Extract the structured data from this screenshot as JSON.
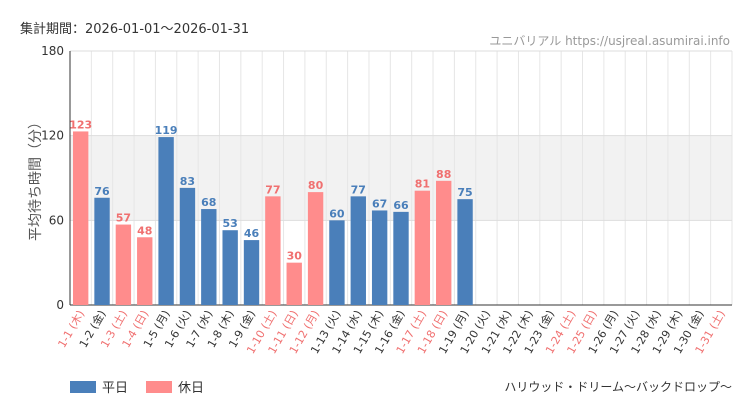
{
  "header": {
    "period_label": "集計期間：2026-01-01～2026-01-31",
    "site_name": "ユニバリアル",
    "site_url": "https://usjreal.asumirai.info"
  },
  "footer": {
    "attraction_name": "ハリウッド・ドリーム～バックドロップ～"
  },
  "colors": {
    "weekday": "#4a7fba",
    "holiday": "#ff8c8c",
    "holiday_label": "#f07070",
    "band": "#f2f2f2"
  },
  "chart_data": {
    "type": "bar",
    "ylabel": "平均待ち時間（分）",
    "ylim": [
      0,
      180
    ],
    "yticks": [
      0,
      60,
      120,
      180
    ],
    "highlight_band": [
      60,
      120
    ],
    "legend": [
      {
        "key": "weekday",
        "label": "平日"
      },
      {
        "key": "holiday",
        "label": "休日"
      }
    ],
    "categories": [
      {
        "label": "1-1 (木)",
        "value": 123,
        "holiday": true
      },
      {
        "label": "1-2 (金)",
        "value": 76,
        "holiday": false
      },
      {
        "label": "1-3 (土)",
        "value": 57,
        "holiday": true
      },
      {
        "label": "1-4 (日)",
        "value": 48,
        "holiday": true
      },
      {
        "label": "1-5 (月)",
        "value": 119,
        "holiday": false
      },
      {
        "label": "1-6 (火)",
        "value": 83,
        "holiday": false
      },
      {
        "label": "1-7 (水)",
        "value": 68,
        "holiday": false
      },
      {
        "label": "1-8 (木)",
        "value": 53,
        "holiday": false
      },
      {
        "label": "1-9 (金)",
        "value": 46,
        "holiday": false
      },
      {
        "label": "1-10 (土)",
        "value": 77,
        "holiday": true
      },
      {
        "label": "1-11 (日)",
        "value": 30,
        "holiday": true
      },
      {
        "label": "1-12 (月)",
        "value": 80,
        "holiday": true
      },
      {
        "label": "1-13 (火)",
        "value": 60,
        "holiday": false
      },
      {
        "label": "1-14 (水)",
        "value": 77,
        "holiday": false
      },
      {
        "label": "1-15 (木)",
        "value": 67,
        "holiday": false
      },
      {
        "label": "1-16 (金)",
        "value": 66,
        "holiday": false
      },
      {
        "label": "1-17 (土)",
        "value": 81,
        "holiday": true
      },
      {
        "label": "1-18 (日)",
        "value": 88,
        "holiday": true
      },
      {
        "label": "1-19 (月)",
        "value": 75,
        "holiday": false
      },
      {
        "label": "1-20 (火)",
        "value": null,
        "holiday": false
      },
      {
        "label": "1-21 (水)",
        "value": null,
        "holiday": false
      },
      {
        "label": "1-22 (木)",
        "value": null,
        "holiday": false
      },
      {
        "label": "1-23 (金)",
        "value": null,
        "holiday": false
      },
      {
        "label": "1-24 (土)",
        "value": null,
        "holiday": true
      },
      {
        "label": "1-25 (日)",
        "value": null,
        "holiday": true
      },
      {
        "label": "1-26 (月)",
        "value": null,
        "holiday": false
      },
      {
        "label": "1-27 (火)",
        "value": null,
        "holiday": false
      },
      {
        "label": "1-28 (水)",
        "value": null,
        "holiday": false
      },
      {
        "label": "1-29 (木)",
        "value": null,
        "holiday": false
      },
      {
        "label": "1-30 (金)",
        "value": null,
        "holiday": false
      },
      {
        "label": "1-31 (土)",
        "value": null,
        "holiday": true
      }
    ]
  }
}
